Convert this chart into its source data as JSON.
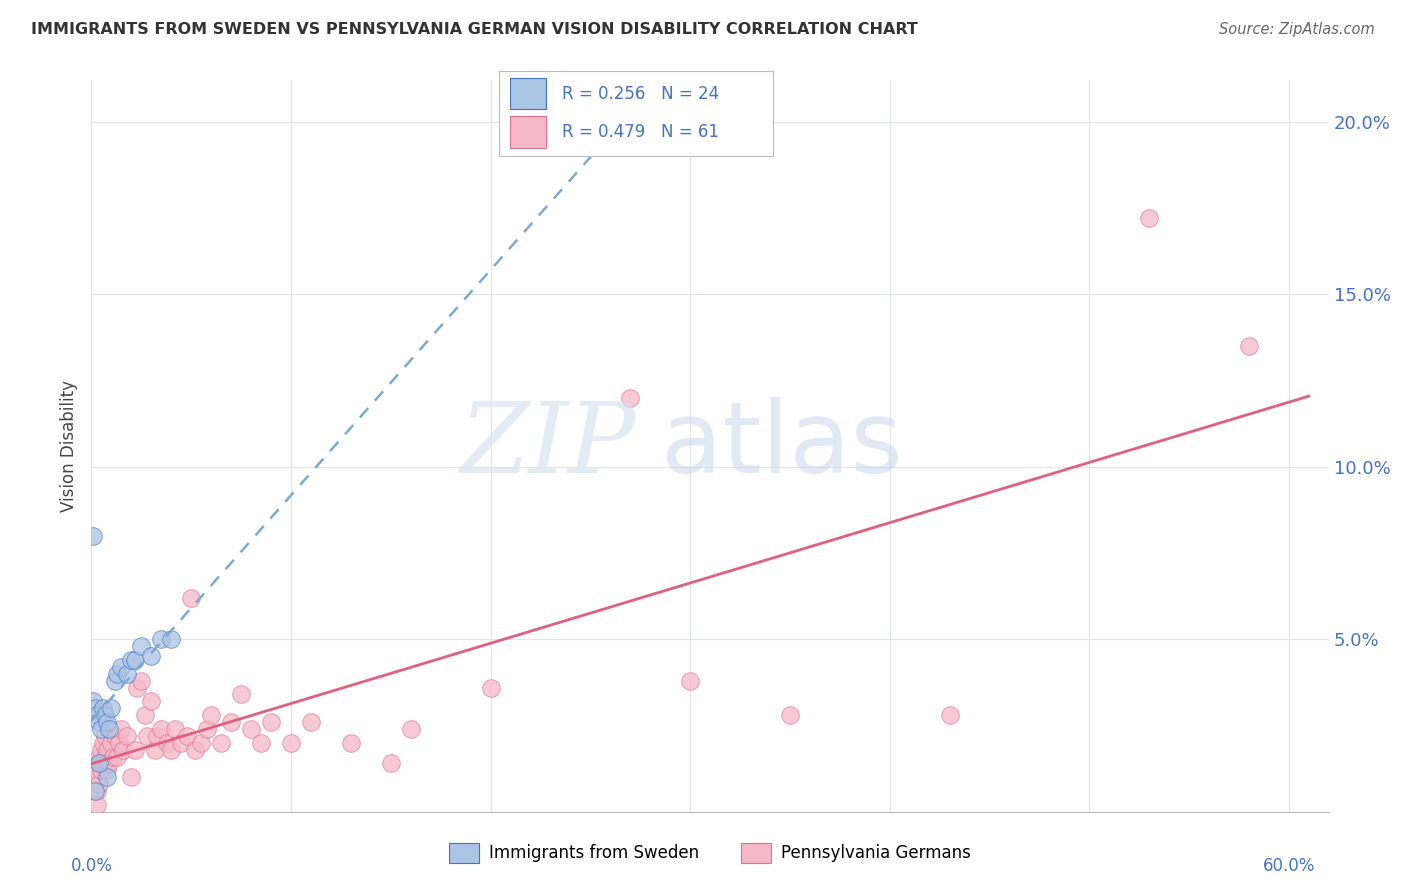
{
  "title": "IMMIGRANTS FROM SWEDEN VS PENNSYLVANIA GERMAN VISION DISABILITY CORRELATION CHART",
  "source": "Source: ZipAtlas.com",
  "ylabel": "Vision Disability",
  "background_color": "#ffffff",
  "grid_color": "#e0e4ea",
  "sweden_face_color": "#aac4e4",
  "sweden_edge_color": "#4472C4",
  "pa_face_color": "#f5b8c8",
  "pa_edge_color": "#e07090",
  "sweden_trend_color": "#7aaad0",
  "pa_trend_color": "#e06080",
  "axis_label_color": "#4472C4",
  "title_color": "#333333",
  "source_color": "#666666",
  "ylabel_color": "#444444",
  "legend_R_color": "#000000",
  "legend_val_color": "#4472C4",
  "yticks": [
    0.0,
    0.05,
    0.1,
    0.15,
    0.2
  ],
  "ytick_labels": [
    "",
    "5.0%",
    "10.0%",
    "15.0%",
    "20.0%"
  ],
  "xtick_labels": [
    "0.0%",
    "",
    "",
    "",
    "",
    "",
    "60.0%"
  ],
  "xlim": [
    0.0,
    0.62
  ],
  "ylim": [
    0.0,
    0.212
  ],
  "sweden_scatter": [
    [
      0.001,
      0.032
    ],
    [
      0.002,
      0.03
    ],
    [
      0.003,
      0.028
    ],
    [
      0.004,
      0.026
    ],
    [
      0.005,
      0.024
    ],
    [
      0.006,
      0.03
    ],
    [
      0.007,
      0.028
    ],
    [
      0.008,
      0.026
    ],
    [
      0.009,
      0.024
    ],
    [
      0.01,
      0.03
    ],
    [
      0.012,
      0.038
    ],
    [
      0.013,
      0.04
    ],
    [
      0.015,
      0.042
    ],
    [
      0.018,
      0.04
    ],
    [
      0.02,
      0.044
    ],
    [
      0.022,
      0.044
    ],
    [
      0.025,
      0.048
    ],
    [
      0.03,
      0.045
    ],
    [
      0.035,
      0.05
    ],
    [
      0.04,
      0.05
    ],
    [
      0.002,
      0.006
    ],
    [
      0.008,
      0.01
    ],
    [
      0.001,
      0.08
    ],
    [
      0.004,
      0.014
    ]
  ],
  "pa_scatter": [
    [
      0.001,
      0.01
    ],
    [
      0.002,
      0.014
    ],
    [
      0.003,
      0.006
    ],
    [
      0.003,
      0.012
    ],
    [
      0.004,
      0.008
    ],
    [
      0.004,
      0.016
    ],
    [
      0.005,
      0.012
    ],
    [
      0.005,
      0.018
    ],
    [
      0.006,
      0.014
    ],
    [
      0.006,
      0.02
    ],
    [
      0.007,
      0.016
    ],
    [
      0.007,
      0.022
    ],
    [
      0.008,
      0.012
    ],
    [
      0.008,
      0.018
    ],
    [
      0.009,
      0.014
    ],
    [
      0.01,
      0.02
    ],
    [
      0.011,
      0.016
    ],
    [
      0.012,
      0.022
    ],
    [
      0.013,
      0.016
    ],
    [
      0.014,
      0.02
    ],
    [
      0.015,
      0.024
    ],
    [
      0.016,
      0.018
    ],
    [
      0.018,
      0.022
    ],
    [
      0.02,
      0.01
    ],
    [
      0.022,
      0.018
    ],
    [
      0.023,
      0.036
    ],
    [
      0.025,
      0.038
    ],
    [
      0.027,
      0.028
    ],
    [
      0.028,
      0.022
    ],
    [
      0.03,
      0.032
    ],
    [
      0.032,
      0.018
    ],
    [
      0.033,
      0.022
    ],
    [
      0.035,
      0.024
    ],
    [
      0.038,
      0.02
    ],
    [
      0.04,
      0.018
    ],
    [
      0.042,
      0.024
    ],
    [
      0.045,
      0.02
    ],
    [
      0.048,
      0.022
    ],
    [
      0.05,
      0.062
    ],
    [
      0.052,
      0.018
    ],
    [
      0.055,
      0.02
    ],
    [
      0.058,
      0.024
    ],
    [
      0.06,
      0.028
    ],
    [
      0.065,
      0.02
    ],
    [
      0.07,
      0.026
    ],
    [
      0.075,
      0.034
    ],
    [
      0.08,
      0.024
    ],
    [
      0.085,
      0.02
    ],
    [
      0.09,
      0.026
    ],
    [
      0.1,
      0.02
    ],
    [
      0.11,
      0.026
    ],
    [
      0.13,
      0.02
    ],
    [
      0.15,
      0.014
    ],
    [
      0.16,
      0.024
    ],
    [
      0.2,
      0.036
    ],
    [
      0.27,
      0.12
    ],
    [
      0.3,
      0.038
    ],
    [
      0.35,
      0.028
    ],
    [
      0.43,
      0.028
    ],
    [
      0.53,
      0.172
    ],
    [
      0.58,
      0.135
    ],
    [
      0.003,
      0.002
    ]
  ]
}
